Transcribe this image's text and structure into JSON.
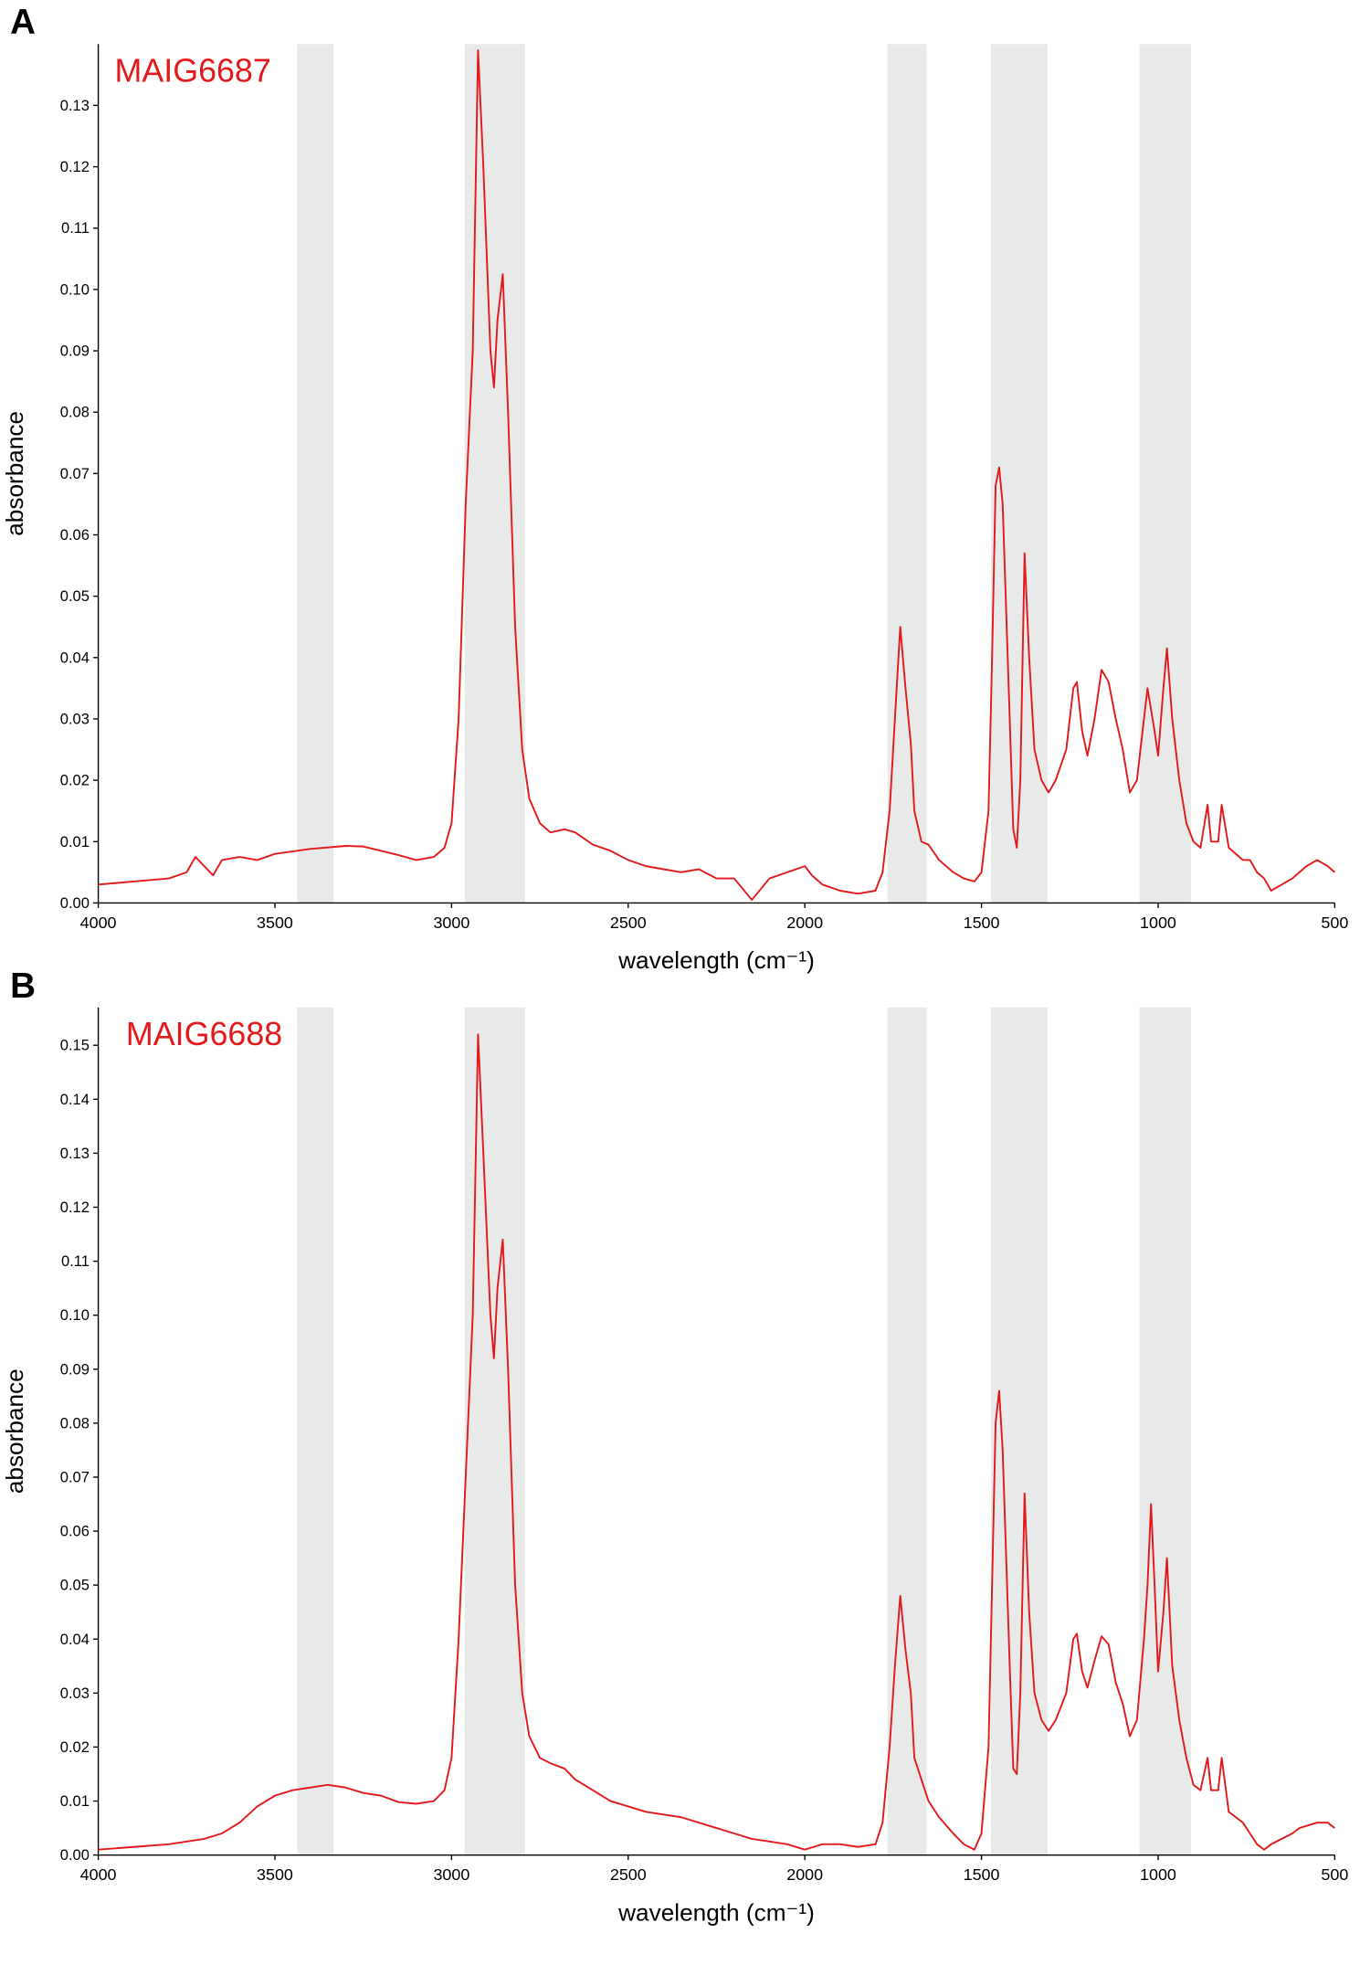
{
  "chart_data": [
    {
      "type": "line",
      "panel_label": "A",
      "annotation": "MAIG6687",
      "xlabel": "wavelength (cm⁻¹)",
      "ylabel": "absorbance",
      "xlim": [
        4000,
        500
      ],
      "xticks": [
        4000,
        3500,
        3000,
        2500,
        2000,
        1500,
        1000,
        500
      ],
      "ylim": [
        0,
        0.14
      ],
      "yticks": [
        {
          "value": 0,
          "label": "0.00"
        },
        0.01,
        0.02,
        0.03,
        0.04,
        0.05,
        0.06,
        0.07,
        0.08,
        0.09,
        {
          "value": 0.1,
          "label": "0.10"
        },
        0.11,
        0.12,
        0.13
      ],
      "shaded_ranges": [
        [
          3437,
          3334
        ],
        [
          2963,
          2792
        ],
        [
          1766,
          1655
        ],
        [
          1473,
          1313
        ],
        [
          1053,
          907
        ]
      ],
      "shade_color": "#e8eaea",
      "x": [
        4000,
        3900,
        3800,
        3750,
        3725,
        3700,
        3675,
        3650,
        3600,
        3550,
        3500,
        3400,
        3300,
        3250,
        3200,
        3150,
        3100,
        3050,
        3020,
        3000,
        2980,
        2960,
        2940,
        2925,
        2910,
        2890,
        2880,
        2870,
        2855,
        2840,
        2820,
        2800,
        2780,
        2750,
        2720,
        2680,
        2650,
        2600,
        2550,
        2500,
        2450,
        2400,
        2350,
        2300,
        2250,
        2200,
        2150,
        2100,
        2050,
        2000,
        1980,
        1950,
        1900,
        1850,
        1800,
        1780,
        1760,
        1745,
        1730,
        1715,
        1700,
        1690,
        1670,
        1650,
        1620,
        1580,
        1550,
        1520,
        1500,
        1480,
        1470,
        1460,
        1450,
        1440,
        1420,
        1410,
        1400,
        1390,
        1378,
        1365,
        1350,
        1330,
        1310,
        1290,
        1260,
        1240,
        1230,
        1215,
        1200,
        1180,
        1160,
        1140,
        1120,
        1100,
        1080,
        1060,
        1040,
        1030,
        1010,
        1000,
        985,
        975,
        960,
        940,
        920,
        900,
        880,
        860,
        850,
        830,
        820,
        800,
        780,
        760,
        740,
        720,
        700,
        680,
        650,
        620,
        600,
        580,
        550,
        520,
        500
      ],
      "series": [
        {
          "color": "#e31a1c",
          "values": [
            0.003,
            0.0035,
            0.004,
            0.005,
            0.0075,
            0.006,
            0.0045,
            0.007,
            0.0075,
            0.007,
            0.008,
            0.0088,
            0.0093,
            0.0092,
            0.0085,
            0.0078,
            0.007,
            0.0075,
            0.009,
            0.013,
            0.03,
            0.065,
            0.09,
            0.139,
            0.12,
            0.09,
            0.084,
            0.095,
            0.1025,
            0.08,
            0.045,
            0.025,
            0.017,
            0.013,
            0.0115,
            0.012,
            0.0115,
            0.0095,
            0.0085,
            0.007,
            0.006,
            0.0055,
            0.005,
            0.0055,
            0.004,
            0.004,
            0.0005,
            0.004,
            0.005,
            0.006,
            0.0045,
            0.003,
            0.002,
            0.0015,
            0.002,
            0.005,
            0.015,
            0.03,
            0.045,
            0.035,
            0.026,
            0.015,
            0.01,
            0.0095,
            0.007,
            0.005,
            0.004,
            0.0035,
            0.005,
            0.015,
            0.04,
            0.068,
            0.071,
            0.065,
            0.03,
            0.012,
            0.009,
            0.02,
            0.057,
            0.04,
            0.025,
            0.02,
            0.018,
            0.02,
            0.025,
            0.035,
            0.036,
            0.028,
            0.024,
            0.03,
            0.038,
            0.036,
            0.03,
            0.025,
            0.018,
            0.02,
            0.03,
            0.035,
            0.028,
            0.024,
            0.035,
            0.0415,
            0.03,
            0.02,
            0.013,
            0.01,
            0.009,
            0.016,
            0.01,
            0.01,
            0.016,
            0.009,
            0.008,
            0.007,
            0.007,
            0.005,
            0.004,
            0.002,
            0.003,
            0.004,
            0.005,
            0.006,
            0.007,
            0.006,
            0.005
          ]
        }
      ]
    },
    {
      "type": "line",
      "panel_label": "B",
      "annotation": "MAIG6688",
      "xlabel": "wavelength (cm⁻¹)",
      "ylabel": "absorbance",
      "xlim": [
        4000,
        500
      ],
      "xticks": [
        4000,
        3500,
        3000,
        2500,
        2000,
        1500,
        1000,
        500
      ],
      "ylim": [
        0,
        0.157
      ],
      "yticks": [
        {
          "value": 0,
          "label": "0.00"
        },
        0.01,
        0.02,
        0.03,
        0.04,
        0.05,
        0.06,
        0.07,
        0.08,
        0.09,
        {
          "value": 0.1,
          "label": "0.10"
        },
        0.11,
        0.12,
        0.13,
        0.14,
        0.15
      ],
      "shaded_ranges": [
        [
          3437,
          3334
        ],
        [
          2963,
          2792
        ],
        [
          1766,
          1655
        ],
        [
          1473,
          1313
        ],
        [
          1053,
          907
        ]
      ],
      "shade_color": "#e8eaea",
      "x": [
        4000,
        3900,
        3800,
        3700,
        3650,
        3600,
        3550,
        3500,
        3450,
        3400,
        3350,
        3300,
        3250,
        3200,
        3150,
        3100,
        3050,
        3020,
        3000,
        2980,
        2960,
        2940,
        2925,
        2910,
        2890,
        2880,
        2870,
        2855,
        2840,
        2820,
        2800,
        2780,
        2750,
        2720,
        2680,
        2650,
        2600,
        2550,
        2500,
        2450,
        2400,
        2350,
        2300,
        2250,
        2200,
        2150,
        2100,
        2050,
        2000,
        1950,
        1900,
        1850,
        1800,
        1780,
        1760,
        1745,
        1730,
        1715,
        1700,
        1690,
        1670,
        1650,
        1620,
        1580,
        1550,
        1520,
        1500,
        1480,
        1470,
        1460,
        1450,
        1440,
        1420,
        1410,
        1400,
        1390,
        1378,
        1365,
        1350,
        1330,
        1310,
        1290,
        1260,
        1240,
        1230,
        1215,
        1200,
        1180,
        1160,
        1140,
        1120,
        1100,
        1080,
        1060,
        1040,
        1030,
        1020,
        1010,
        1000,
        985,
        975,
        960,
        940,
        920,
        900,
        880,
        860,
        850,
        830,
        820,
        800,
        780,
        760,
        740,
        720,
        700,
        680,
        650,
        620,
        600,
        550,
        520,
        500
      ],
      "series": [
        {
          "color": "#e31a1c",
          "values": [
            0.001,
            0.0015,
            0.002,
            0.003,
            0.004,
            0.006,
            0.009,
            0.011,
            0.012,
            0.0125,
            0.013,
            0.0125,
            0.0115,
            0.011,
            0.0098,
            0.0095,
            0.01,
            0.012,
            0.018,
            0.04,
            0.07,
            0.1,
            0.152,
            0.13,
            0.1,
            0.092,
            0.105,
            0.114,
            0.09,
            0.05,
            0.03,
            0.022,
            0.018,
            0.017,
            0.016,
            0.014,
            0.012,
            0.01,
            0.009,
            0.008,
            0.0075,
            0.007,
            0.006,
            0.005,
            0.004,
            0.003,
            0.0025,
            0.002,
            0.001,
            0.002,
            0.002,
            0.0015,
            0.002,
            0.006,
            0.02,
            0.035,
            0.048,
            0.038,
            0.03,
            0.018,
            0.014,
            0.01,
            0.007,
            0.004,
            0.002,
            0.001,
            0.004,
            0.02,
            0.05,
            0.08,
            0.086,
            0.075,
            0.035,
            0.016,
            0.015,
            0.03,
            0.067,
            0.045,
            0.03,
            0.025,
            0.023,
            0.025,
            0.03,
            0.04,
            0.041,
            0.034,
            0.031,
            0.036,
            0.0405,
            0.039,
            0.032,
            0.028,
            0.022,
            0.025,
            0.04,
            0.05,
            0.065,
            0.05,
            0.034,
            0.045,
            0.055,
            0.035,
            0.025,
            0.018,
            0.013,
            0.012,
            0.018,
            0.012,
            0.012,
            0.018,
            0.008,
            0.007,
            0.006,
            0.004,
            0.002,
            0.001,
            0.002,
            0.003,
            0.004,
            0.005,
            0.006,
            0.006,
            0.005
          ]
        }
      ]
    }
  ]
}
